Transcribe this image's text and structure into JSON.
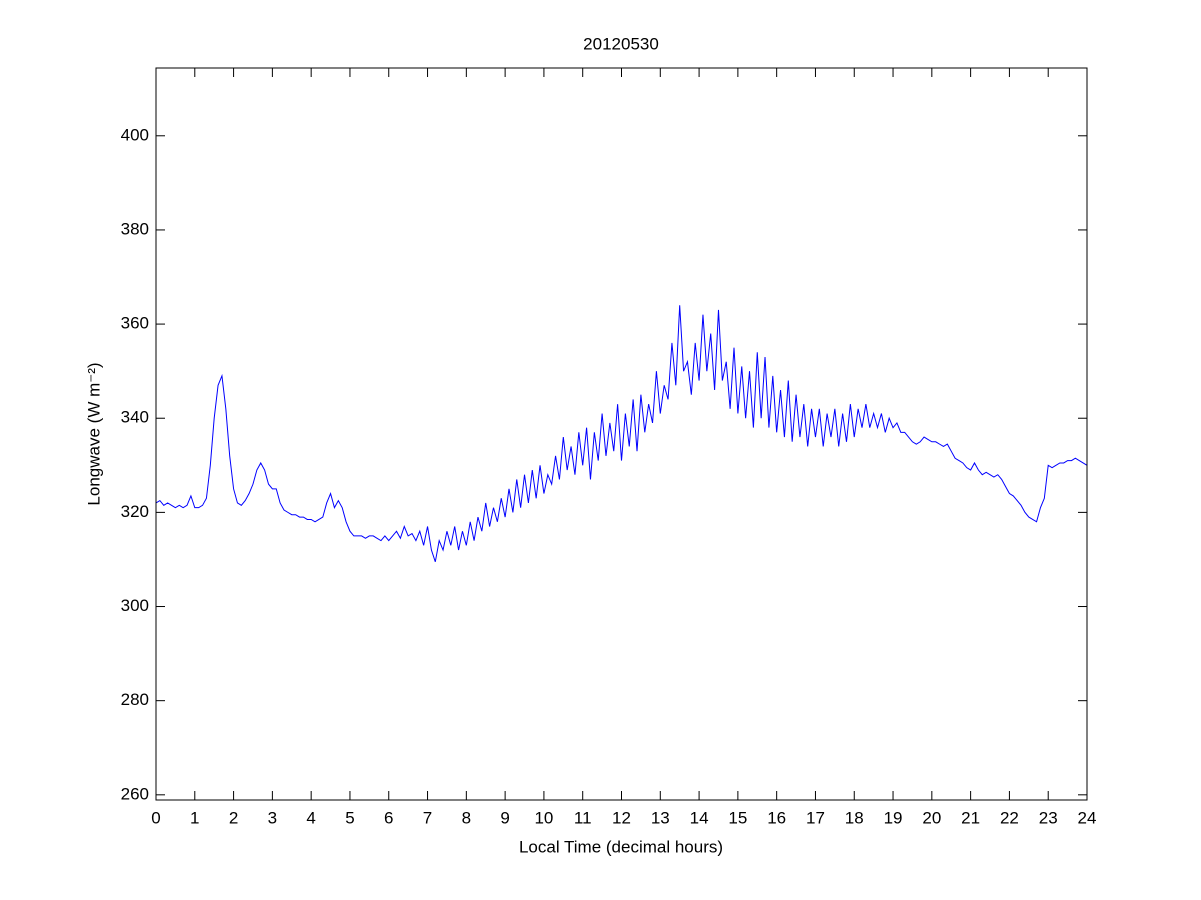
{
  "chart_data": {
    "type": "line",
    "title": "20120530",
    "x_label": "Local Time (decimal hours)",
    "y_label": "Longwave (W m⁻²)",
    "color": "#0000ff",
    "xlim": [
      0,
      24
    ],
    "ylim": [
      258.9,
      414.4
    ],
    "xticks": [
      0,
      1,
      2,
      3,
      4,
      5,
      6,
      7,
      8,
      9,
      10,
      11,
      12,
      13,
      14,
      15,
      16,
      17,
      18,
      19,
      20,
      21,
      22,
      23,
      24
    ],
    "yticks": [
      260,
      280,
      300,
      320,
      340,
      360,
      380,
      400
    ],
    "x": [
      0,
      0.1,
      0.2,
      0.3,
      0.4,
      0.5,
      0.6,
      0.7,
      0.8,
      0.9,
      1,
      1.1,
      1.2,
      1.3,
      1.4,
      1.5,
      1.6,
      1.7,
      1.8,
      1.9,
      2,
      2.1,
      2.2,
      2.3,
      2.4,
      2.5,
      2.6,
      2.7,
      2.8,
      2.9,
      3,
      3.1,
      3.2,
      3.3,
      3.4,
      3.5,
      3.6,
      3.7,
      3.8,
      3.9,
      4,
      4.1,
      4.2,
      4.3,
      4.4,
      4.5,
      4.6,
      4.7,
      4.8,
      4.9,
      5,
      5.1,
      5.2,
      5.3,
      5.4,
      5.5,
      5.6,
      5.7,
      5.8,
      5.9,
      6,
      6.1,
      6.2,
      6.3,
      6.4,
      6.5,
      6.6,
      6.7,
      6.8,
      6.9,
      7,
      7.1,
      7.2,
      7.3,
      7.4,
      7.5,
      7.6,
      7.7,
      7.8,
      7.9,
      8,
      8.1,
      8.2,
      8.3,
      8.4,
      8.5,
      8.6,
      8.7,
      8.8,
      8.9,
      9,
      9.1,
      9.2,
      9.3,
      9.4,
      9.5,
      9.6,
      9.7,
      9.8,
      9.9,
      10,
      10.1,
      10.2,
      10.3,
      10.4,
      10.5,
      10.6,
      10.7,
      10.8,
      10.9,
      11,
      11.1,
      11.2,
      11.3,
      11.4,
      11.5,
      11.6,
      11.7,
      11.8,
      11.9,
      12,
      12.1,
      12.2,
      12.3,
      12.4,
      12.5,
      12.6,
      12.7,
      12.8,
      12.9,
      13,
      13.1,
      13.2,
      13.3,
      13.4,
      13.5,
      13.6,
      13.7,
      13.8,
      13.9,
      14,
      14.1,
      14.2,
      14.3,
      14.4,
      14.5,
      14.6,
      14.7,
      14.8,
      14.9,
      15,
      15.1,
      15.2,
      15.3,
      15.4,
      15.5,
      15.6,
      15.7,
      15.8,
      15.9,
      16,
      16.1,
      16.2,
      16.3,
      16.4,
      16.5,
      16.6,
      16.7,
      16.8,
      16.9,
      17,
      17.1,
      17.2,
      17.3,
      17.4,
      17.5,
      17.6,
      17.7,
      17.8,
      17.9,
      18,
      18.1,
      18.2,
      18.3,
      18.4,
      18.5,
      18.6,
      18.7,
      18.8,
      18.9,
      19,
      19.1,
      19.2,
      19.3,
      19.4,
      19.5,
      19.6,
      19.7,
      19.8,
      19.9,
      20,
      20.1,
      20.2,
      20.3,
      20.4,
      20.5,
      20.6,
      20.7,
      20.8,
      20.9,
      21,
      21.1,
      21.2,
      21.3,
      21.4,
      21.5,
      21.6,
      21.7,
      21.8,
      21.9,
      22,
      22.1,
      22.2,
      22.3,
      22.4,
      22.5,
      22.6,
      22.7,
      22.8,
      22.9,
      23,
      23.1,
      23.2,
      23.3,
      23.4,
      23.5,
      23.6,
      23.7,
      23.8,
      23.9,
      24
    ],
    "values": [
      322,
      322.5,
      321.5,
      322,
      321.5,
      321,
      321.5,
      321,
      321.5,
      323.5,
      321,
      321,
      321.5,
      323,
      330,
      340,
      347,
      349,
      342,
      332,
      325,
      322,
      321.5,
      322.5,
      324,
      326,
      329,
      330.5,
      329,
      326,
      325,
      325,
      322,
      320.5,
      320,
      319.5,
      319.5,
      319,
      319,
      318.5,
      318.5,
      318,
      318.5,
      319,
      322,
      324,
      321,
      322.5,
      321,
      318,
      316,
      315,
      315,
      315,
      314.5,
      315,
      315,
      314.5,
      314,
      315,
      314,
      315,
      316,
      314.5,
      317,
      315,
      315.5,
      314,
      316,
      313,
      317,
      312,
      309.5,
      314,
      312,
      316,
      313,
      317,
      312,
      316,
      313,
      318,
      314,
      319,
      316,
      322,
      317,
      321,
      318,
      323,
      319,
      325,
      320,
      327,
      321,
      328,
      322,
      329,
      323,
      330,
      324,
      328,
      326,
      332,
      327,
      336,
      329,
      334,
      328,
      337,
      330,
      338,
      327,
      337,
      331,
      341,
      332,
      339,
      333,
      343,
      331,
      341,
      334,
      344,
      333,
      345,
      337,
      343,
      339,
      350,
      341,
      347,
      344,
      356,
      347,
      364,
      350,
      352,
      345,
      356,
      348,
      362,
      350,
      358,
      346,
      363,
      348,
      352,
      342,
      355,
      341,
      351,
      340,
      350,
      338,
      354,
      340,
      353,
      338,
      349,
      337,
      346,
      336,
      348,
      335,
      345,
      336,
      343,
      334,
      342,
      336,
      342,
      334,
      341,
      336,
      342,
      334,
      341,
      335,
      343,
      336,
      342,
      338,
      343,
      338,
      341,
      338,
      341,
      337,
      340,
      338,
      339,
      337,
      337,
      336,
      335,
      334.5,
      335,
      336,
      335.5,
      335,
      335,
      334.5,
      334,
      334.5,
      333,
      331.5,
      331,
      330.5,
      329.5,
      329,
      330.5,
      329,
      328,
      328.5,
      328,
      327.5,
      328,
      327,
      325.5,
      324,
      323.5,
      322.5,
      321.5,
      320,
      319,
      318.5,
      318,
      321,
      323,
      330,
      329.5,
      330,
      330.5,
      330.5,
      331,
      331,
      331.5,
      331,
      330.5,
      330
    ]
  }
}
